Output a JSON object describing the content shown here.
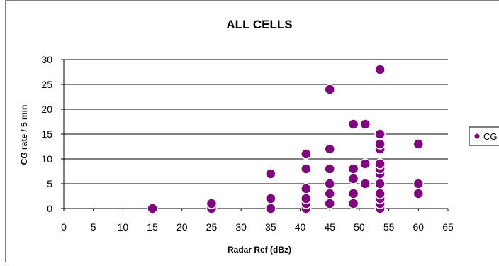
{
  "chart_data": {
    "type": "scatter",
    "title": "ALL CELLS",
    "xlabel": "Radar Ref (dBz)",
    "ylabel": "CG rate  / 5 min",
    "xlim": [
      0,
      65
    ],
    "ylim": [
      0,
      30
    ],
    "xticks": [
      0,
      5,
      10,
      15,
      20,
      25,
      30,
      35,
      40,
      45,
      50,
      55,
      60,
      65
    ],
    "yticks": [
      0,
      5,
      10,
      15,
      20,
      25,
      30
    ],
    "grid": "horizontal major lines",
    "legend_position": "right",
    "series": [
      {
        "name": "CG",
        "color": "#800080",
        "points": [
          [
            15,
            0
          ],
          [
            25,
            0
          ],
          [
            25,
            1
          ],
          [
            35,
            0
          ],
          [
            35,
            2
          ],
          [
            35,
            7
          ],
          [
            41,
            0
          ],
          [
            41,
            1
          ],
          [
            41,
            2
          ],
          [
            41,
            4
          ],
          [
            41,
            8
          ],
          [
            41,
            11
          ],
          [
            45,
            1
          ],
          [
            45,
            3
          ],
          [
            45,
            5
          ],
          [
            45,
            8
          ],
          [
            45,
            12
          ],
          [
            45,
            24
          ],
          [
            49,
            1
          ],
          [
            49,
            3
          ],
          [
            49,
            6
          ],
          [
            49,
            8
          ],
          [
            49,
            17
          ],
          [
            51,
            5
          ],
          [
            51,
            9
          ],
          [
            51,
            17
          ],
          [
            53.5,
            0
          ],
          [
            53.5,
            1
          ],
          [
            53.5,
            2
          ],
          [
            53.5,
            3
          ],
          [
            53.5,
            5
          ],
          [
            53.5,
            7
          ],
          [
            53.5,
            8
          ],
          [
            53.5,
            9
          ],
          [
            53.5,
            12
          ],
          [
            53.5,
            13
          ],
          [
            53.5,
            15
          ],
          [
            53.5,
            28
          ],
          [
            60,
            3
          ],
          [
            60,
            5
          ],
          [
            60,
            13
          ]
        ]
      }
    ]
  }
}
